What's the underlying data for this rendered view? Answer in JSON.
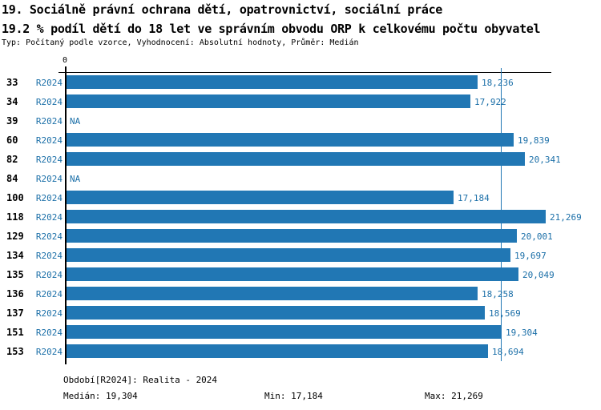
{
  "title": "19. Sociálně právní ochrana dětí, opatrovnictví, sociální práce",
  "subtitle": "19.2 % podíl dětí do 18 let ve správním obvodu ORP k celkovému počtu obyvatel",
  "meta": "Typ: Počítaný podle vzorce, Vyhodnocení: Absolutní hodnoty, Průměr: Medián",
  "chart_data": {
    "type": "bar",
    "orientation": "horizontal",
    "zero_tick": "0",
    "series_label": "R2024",
    "na_label": "NA",
    "categories": [
      "33",
      "34",
      "39",
      "60",
      "82",
      "84",
      "100",
      "118",
      "129",
      "134",
      "135",
      "136",
      "137",
      "151",
      "153"
    ],
    "values": [
      18236,
      17922,
      null,
      19839,
      20341,
      null,
      17184,
      21269,
      20001,
      19697,
      20049,
      18258,
      18569,
      19304,
      18694
    ],
    "value_labels": [
      "18,236",
      "17,922",
      "NA",
      "19,839",
      "20,341",
      "NA",
      "17,184",
      "21,269",
      "20,001",
      "19,697",
      "20,049",
      "18,258",
      "18,569",
      "19,304",
      "18,694"
    ],
    "axis_max": 21269,
    "median_value": 19304,
    "legend_position": "none",
    "grid": false,
    "colors": {
      "bar": "#2177b4",
      "blue_text": "#1b6fa8",
      "axis": "#000000"
    }
  },
  "footer": {
    "period": "Období[R2024]: Realita - 2024",
    "median": "Medián: 19,304",
    "min": "Min: 17,184",
    "max": "Max: 21,269"
  }
}
